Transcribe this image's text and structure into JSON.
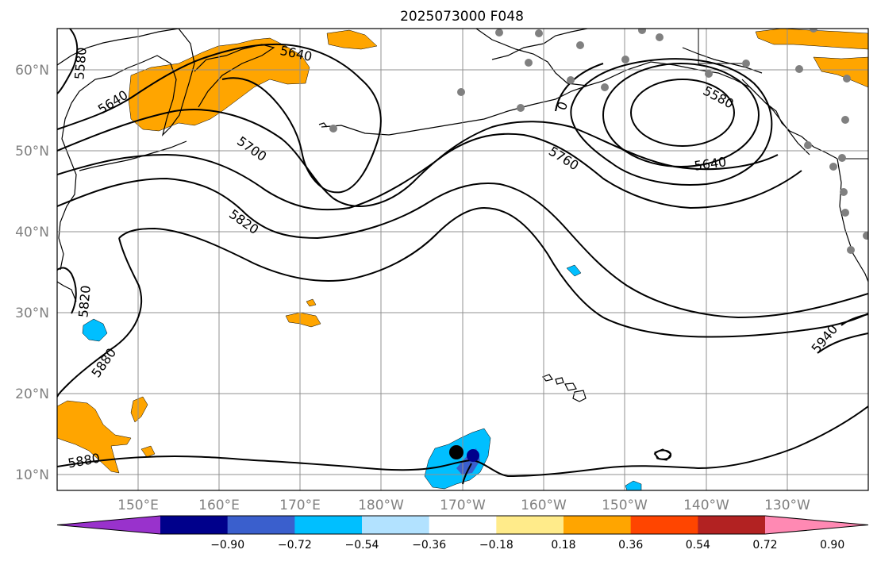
{
  "title": "2025073000 F048",
  "lon_labels": [
    "150°E",
    "160°E",
    "170°E",
    "180°W",
    "170°W",
    "160°W",
    "150°W",
    "140°W",
    "130°W"
  ],
  "lat_labels": [
    "60°N",
    "50°N",
    "40°N",
    "30°N",
    "20°N",
    "10°N"
  ],
  "contour_labels": {
    "c5580_w": "5580",
    "c5640_nw": "5640",
    "c5640_n": "5640",
    "c5700": "5700",
    "c5820_mid": "5820",
    "c5820_w": "5820",
    "c5880_w": "5880",
    "c5880_s": "5880",
    "c5760": "5760",
    "c5580_low": "5580",
    "c5640_low": "5640",
    "c5940": "5940",
    "c_partial": "0"
  },
  "colorbar": {
    "colors": [
      "#9932cc",
      "#00008b",
      "#3a5fcd",
      "#00bfff",
      "#b2e2ff",
      "#ffffff",
      "#ffeb8a",
      "#ffa500",
      "#ff4500",
      "#b22222",
      "#ff89b3"
    ],
    "tick_labels": [
      "−0.90",
      "−0.72",
      "−0.54",
      "−0.36",
      "−0.18",
      "0.18",
      "0.36",
      "0.54",
      "0.72",
      "0.90"
    ]
  },
  "colors": {
    "positive_fill": "#ffa500",
    "negative_fill": "#00bfff",
    "strong_negative_fill": "#3a5fcd",
    "station_dot": "#808080",
    "marker_dot": "#000000"
  }
}
